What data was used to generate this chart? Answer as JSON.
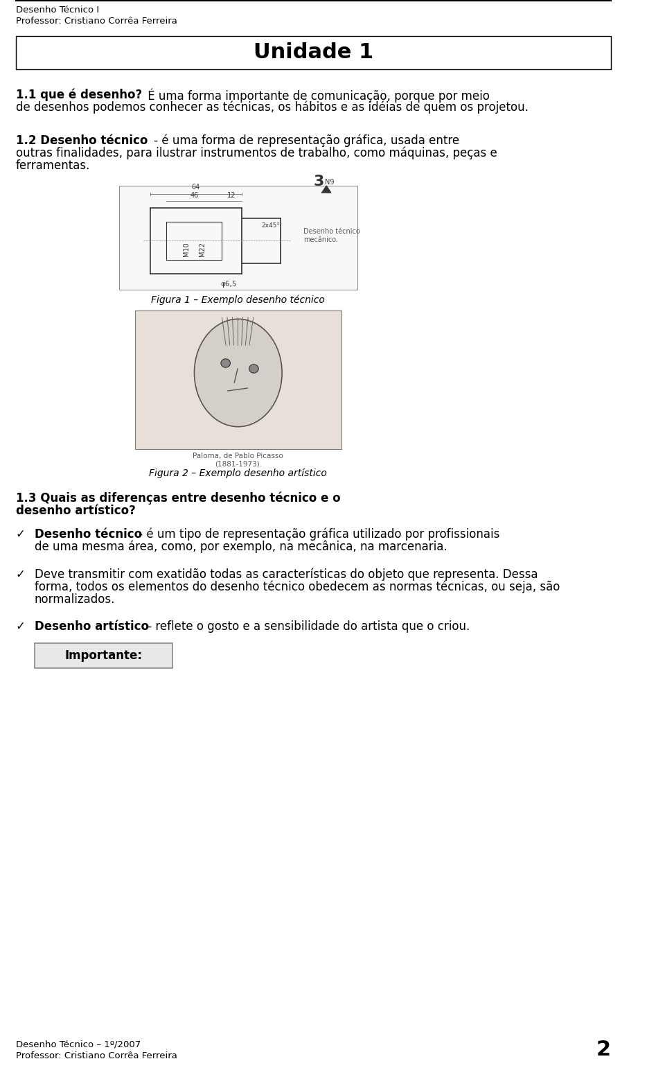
{
  "bg_color": "#ffffff",
  "header_line1": "Desenho Técnico I",
  "header_line2": "Professor: Cristiano Corrêa Ferreira",
  "title": "Unidade 1",
  "section_1_1_label": "1.1 que é desenho?",
  "section_1_1_text": " É uma forma importante de comunicação, porque por meio\nde desenhos podemos conhecer as técnicas, os hábitos e as idéias de quem os projetou.",
  "section_1_2_label": "1.2 Desenho técnico",
  "section_1_2_text": " - é uma forma de representação gráfica, usada entre\noutras finalidades, para ilustrar instrumentos de trabalho, como máquinas, peças e\nferramentas.",
  "fig1_caption": "Figura 1 – Exemplo desenho técnico",
  "fig2_caption": "Figura 2 – Exemplo desenho artístico",
  "section_1_3_label": "1.3 Quais as diferenças entre desenho técnico e o\ndesenho artístico?",
  "bullet1_label": "Desenho técnico",
  "bullet1_text": " - é um tipo de representação gráfica utilizado por profissionais\nde uma mesma área, como, por exemplo, na mecânica, na marcenaria.",
  "bullet2_text": "Deve transmitir com exatidão todas as características do objeto que representa. Dessa\nforma, todos os elementos do desenho técnico obedecem as normas técnicas, ou seja, são\nnormalizados.",
  "bullet3_label": "Desenho artístico",
  "bullet3_text": " - reflete o gosto e a sensibilidade do artista que o criou.",
  "importante_label": "Importante:",
  "footer_line1": "Desenho Técnico – 1º/2007",
  "footer_line2": "Professor: Cristiano Corrêa Ferreira",
  "page_number": "2",
  "font_color": "#000000",
  "header_bg": "#ffffff",
  "title_box_color": "#f0f0f0"
}
